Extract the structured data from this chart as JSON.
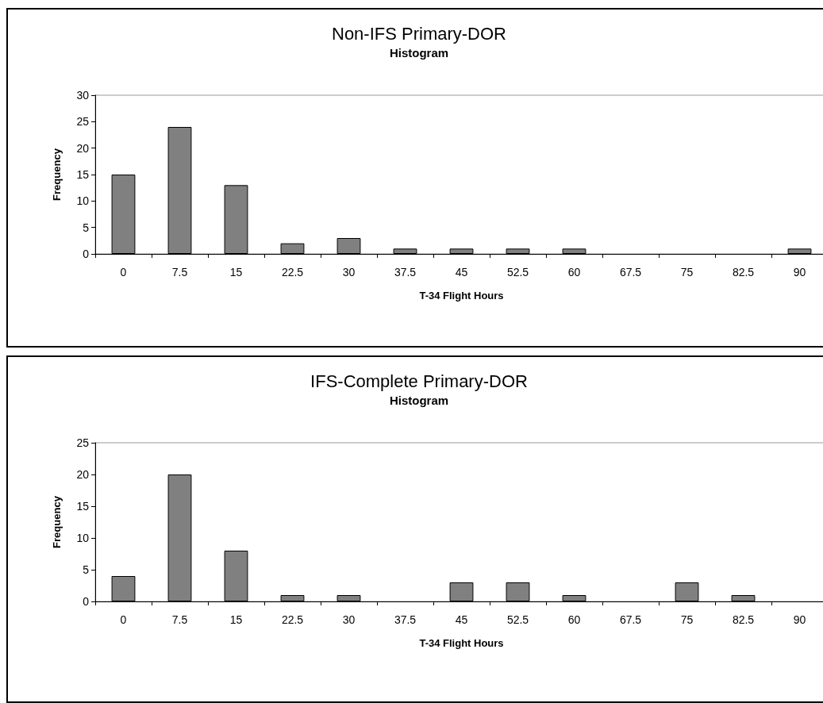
{
  "chart_data": [
    {
      "type": "bar",
      "title": "Non-IFS Primary-DOR",
      "subtitle": "Histogram",
      "xlabel": "T-34 Flight Hours",
      "ylabel": "Frequency",
      "categories": [
        "0",
        "7.5",
        "15",
        "22.5",
        "30",
        "37.5",
        "45",
        "52.5",
        "60",
        "67.5",
        "75",
        "82.5",
        "90"
      ],
      "values": [
        15,
        24,
        13,
        2,
        3,
        1,
        1,
        1,
        1,
        0,
        0,
        0,
        1
      ],
      "color": "#808080",
      "ylim": [
        0,
        30
      ],
      "yticks": [
        0,
        5,
        10,
        15,
        20,
        25,
        30
      ],
      "grid": false
    },
    {
      "type": "bar",
      "title": "IFS-Complete Primary-DOR",
      "subtitle": "Histogram",
      "xlabel": "T-34 Flight Hours",
      "ylabel": "Frequency",
      "categories": [
        "0",
        "7.5",
        "15",
        "22.5",
        "30",
        "37.5",
        "45",
        "52.5",
        "60",
        "67.5",
        "75",
        "82.5",
        "90"
      ],
      "values": [
        4,
        20,
        8,
        1,
        1,
        0,
        3,
        3,
        1,
        0,
        3,
        1,
        0
      ],
      "color": "#808080",
      "ylim": [
        0,
        25
      ],
      "yticks": [
        0,
        5,
        10,
        15,
        20,
        25
      ],
      "grid": false
    }
  ]
}
